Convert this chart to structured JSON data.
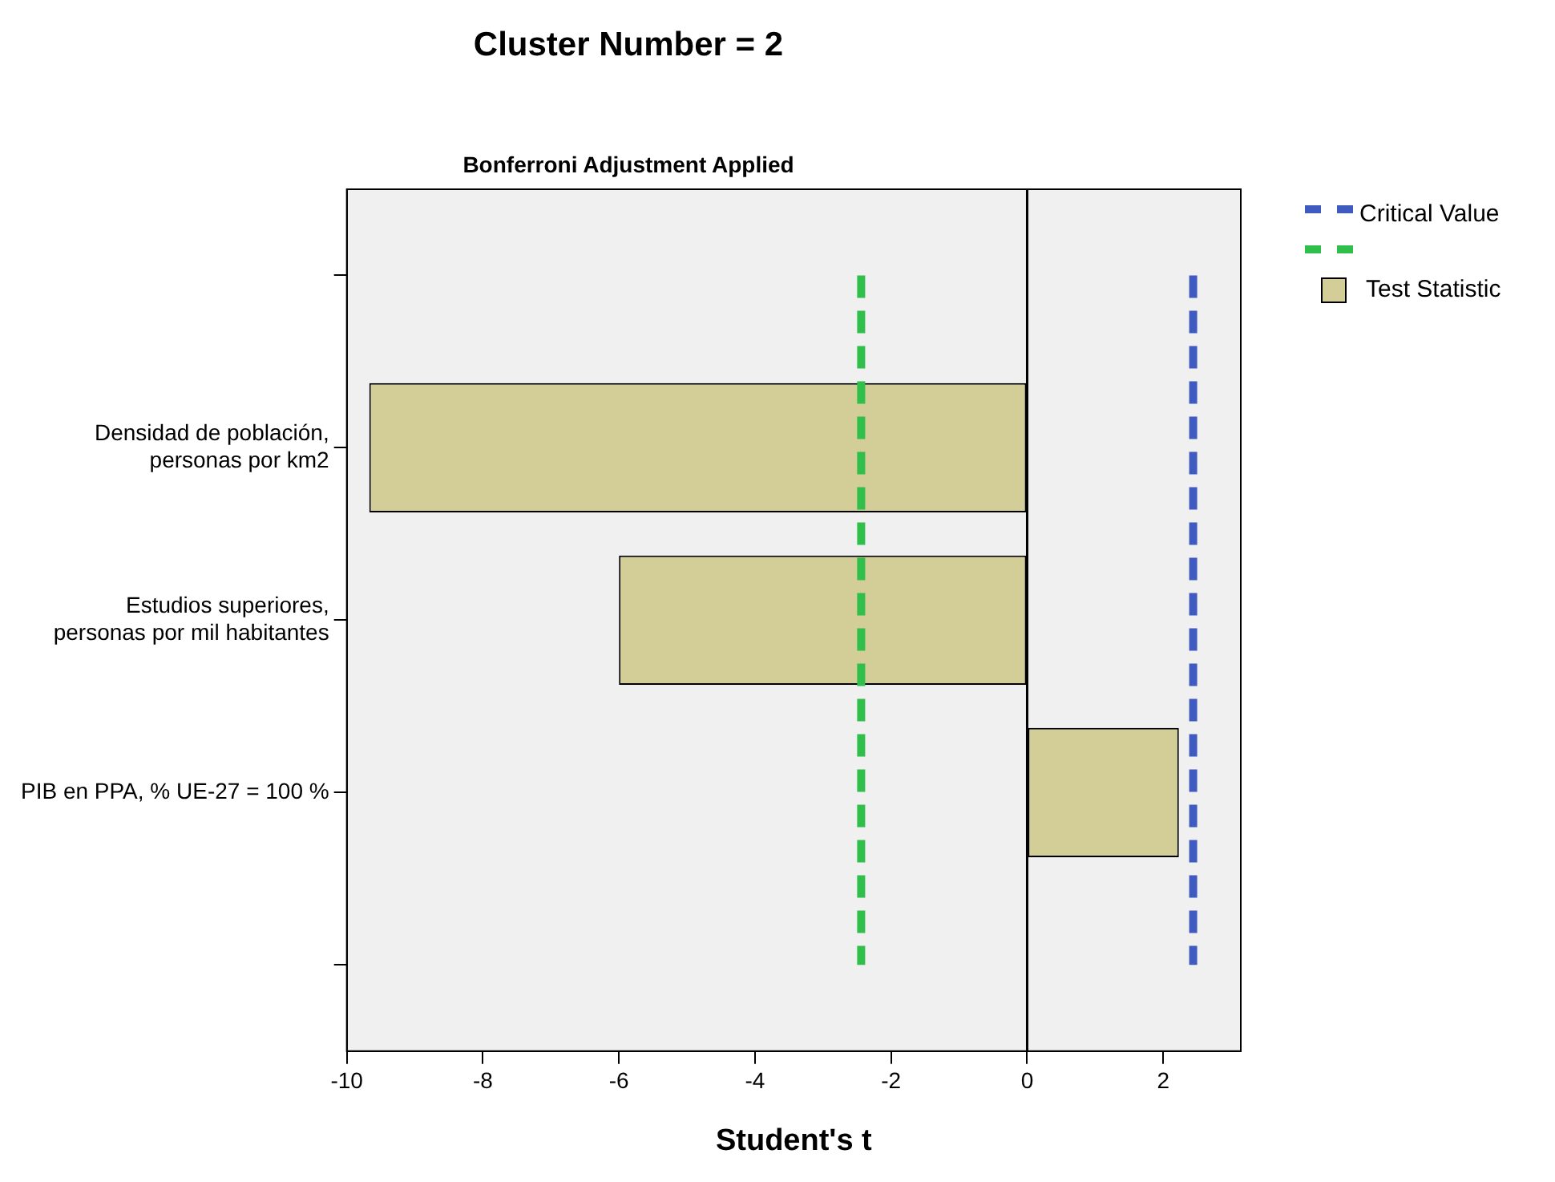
{
  "chart_data": {
    "type": "bar",
    "orientation": "horizontal",
    "title": "Cluster Number = 2",
    "subtitle": "Bonferroni Adjustment Applied",
    "xlabel": "Student's t",
    "categories": [
      null,
      "Densidad de población, personas por km2",
      "Estudios superiores, personas por mil habitantes",
      "PIB en PPA, % UE-27 = 100 %",
      null
    ],
    "series": [
      {
        "name": "Test Statistic",
        "color": "#d3cd97",
        "values": [
          null,
          -9.67,
          -6.0,
          2.23,
          null
        ]
      }
    ],
    "xlim": [
      -10,
      3.14
    ],
    "xticks": [
      -10,
      -8,
      -6,
      -4,
      -2,
      0,
      2
    ],
    "ref_lines": [
      {
        "axis": "x",
        "value": 0,
        "color": "#000000",
        "line_style": "solid"
      },
      {
        "axis": "x",
        "value": 2.44,
        "label": "Critical Value",
        "color": "#3f5bbf",
        "line_style": "dashed"
      },
      {
        "axis": "x",
        "value": -2.44,
        "color": "#2fbf4a",
        "line_style": "dashed"
      }
    ],
    "grid": false,
    "legend": "top right"
  }
}
